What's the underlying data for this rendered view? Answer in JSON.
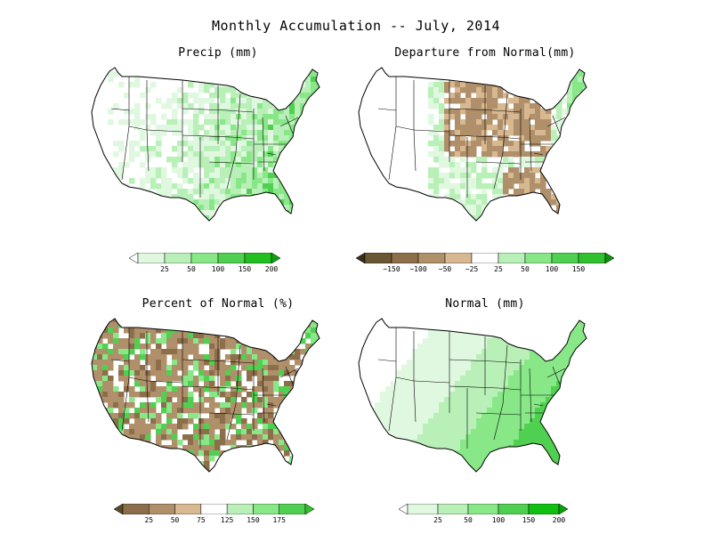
{
  "title": "Monthly Accumulation -- July, 2014",
  "colors": {
    "white": "#ffffff",
    "green_1": "#e0f8e0",
    "green_2": "#b8f0b8",
    "green_3": "#88e888",
    "green_4": "#50d050",
    "green_5": "#20c020",
    "brown_1": "#5a4a2a",
    "brown_2": "#8c6e4a",
    "brown_3": "#b0906a",
    "brown_4": "#d8b890"
  },
  "panels": [
    {
      "key": "precip",
      "title": "Precip (mm)",
      "colorbar": {
        "colors": [
          "#ffffff",
          "#e0f8e0",
          "#b8f0b8",
          "#88e888",
          "#50d050",
          "#20c020",
          "#10a010"
        ],
        "ticks": [
          "25",
          "50",
          "100",
          "150",
          "200"
        ]
      }
    },
    {
      "key": "departure",
      "title": "Departure from Normal(mm)",
      "colorbar": {
        "colors": [
          "#3a2e18",
          "#6a5634",
          "#8c6e4a",
          "#b0906a",
          "#d8b890",
          "#ffffff",
          "#b8f0b8",
          "#88e888",
          "#50d050",
          "#30c030",
          "#109010"
        ],
        "ticks": [
          "−150",
          "−100",
          "−50",
          "−25",
          "25",
          "50",
          "100",
          "150"
        ]
      }
    },
    {
      "key": "percent",
      "title": "Percent of Normal (%)",
      "colorbar": {
        "colors": [
          "#5a4a2a",
          "#8c6e4a",
          "#b0906a",
          "#d8b890",
          "#ffffff",
          "#b8f0b8",
          "#88e888",
          "#50d050",
          "#30c030"
        ],
        "ticks": [
          "25",
          "50",
          "75",
          "125",
          "150",
          "175"
        ]
      }
    },
    {
      "key": "normal",
      "title": "Normal (mm)",
      "colorbar": {
        "colors": [
          "#ffffff",
          "#e0f8e0",
          "#b8f0b8",
          "#88e888",
          "#50d050",
          "#10c010",
          "#08a008"
        ],
        "ticks": [
          "25",
          "50",
          "100",
          "150",
          "200"
        ]
      }
    }
  ]
}
